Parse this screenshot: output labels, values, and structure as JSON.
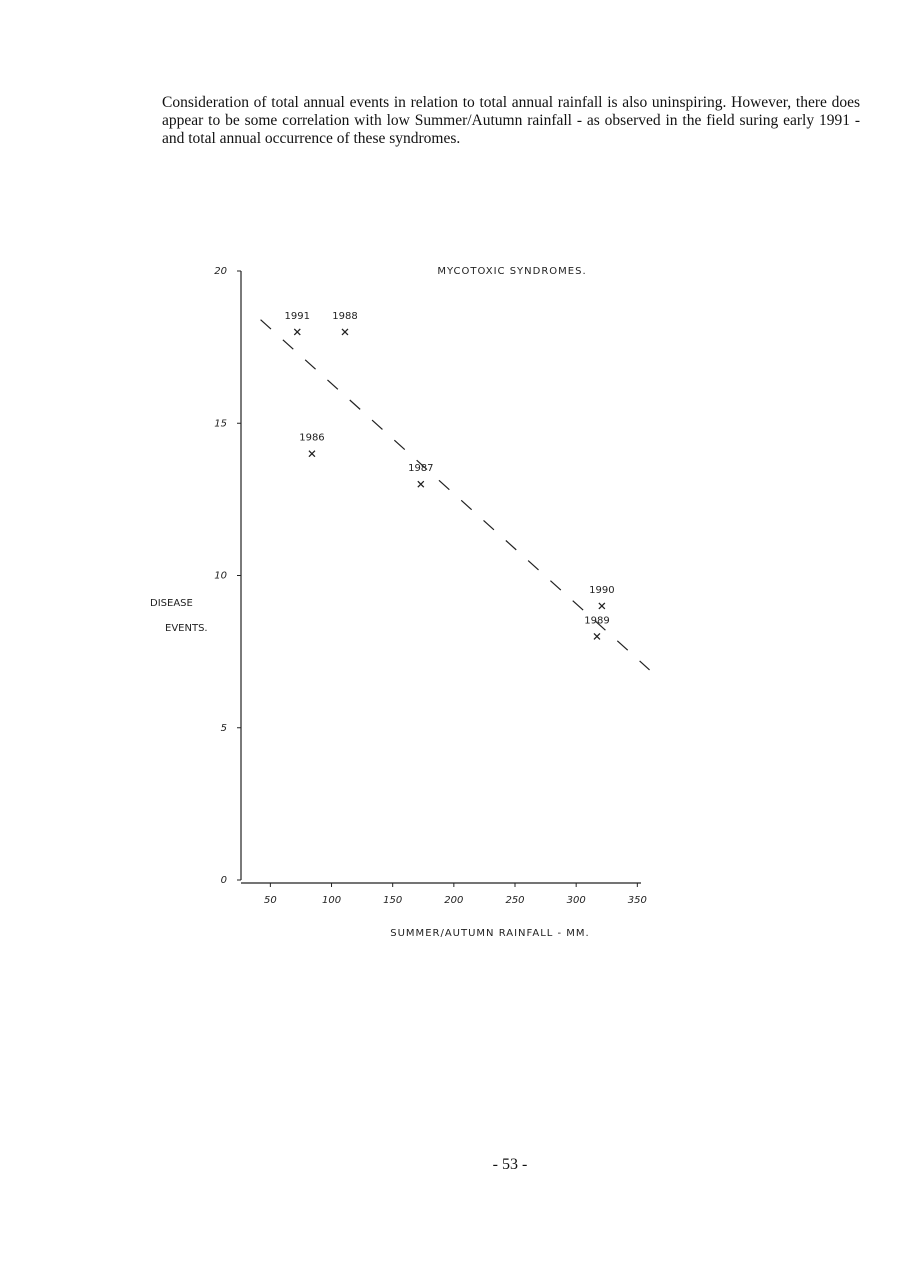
{
  "paragraph": "Consideration of total annual events in relation to total annual rainfall is also uninspiring. However, there does appear to be some correlation with low Summer/Autumn rainfall - as observed in the field suring early 1991 -and total annual occurrence of these syndromes.",
  "chart_data": {
    "type": "scatter",
    "title": "MYCOTOXIC SYNDROMES.",
    "x_label": "SUMMER/AUTUMN RAINFALL - MM.",
    "y_label": [
      "DISEASE",
      "EVENTS."
    ],
    "x": [
      72,
      111,
      84,
      173,
      321,
      317
    ],
    "values": [
      18,
      18,
      14,
      13,
      9,
      8
    ],
    "point_labels": [
      "1991",
      "1988",
      "1986",
      "1987",
      "1990",
      "1989"
    ],
    "trend_line": {
      "x": [
        42,
        360
      ],
      "values": [
        18.4,
        6.9
      ]
    },
    "marker": "x",
    "color": "#222",
    "xlim": [
      26,
      353
    ],
    "xticks": [
      50,
      100,
      150,
      200,
      250,
      300,
      350
    ],
    "ylim": [
      0,
      20
    ],
    "yticks": [
      0,
      5,
      10,
      15,
      20
    ]
  },
  "page_number": "- 53 -"
}
